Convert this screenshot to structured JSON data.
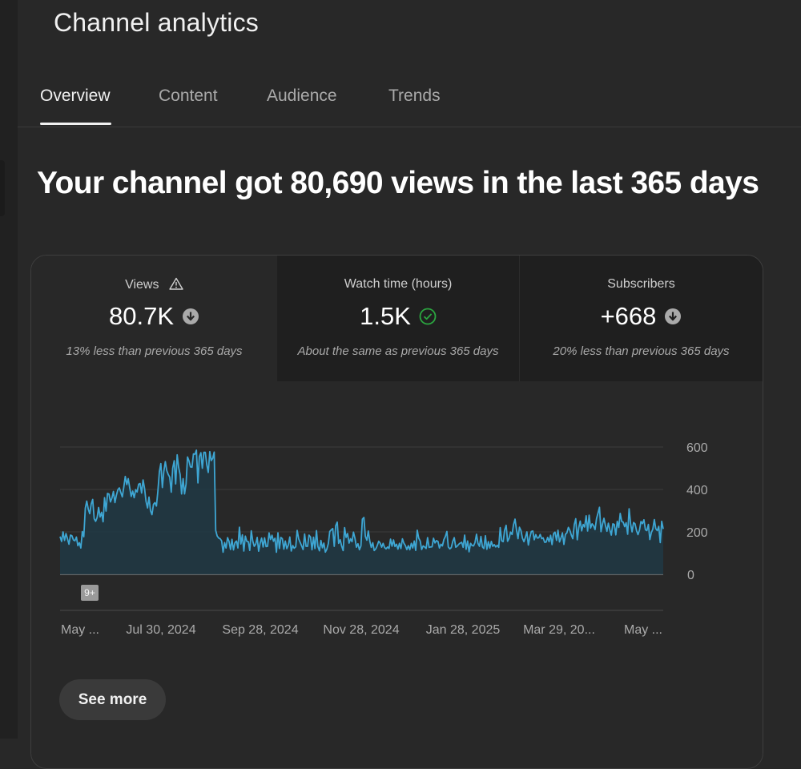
{
  "header": {
    "title": "Channel analytics"
  },
  "tabs": [
    {
      "label": "Overview",
      "active": true
    },
    {
      "label": "Content",
      "active": false
    },
    {
      "label": "Audience",
      "active": false
    },
    {
      "label": "Trends",
      "active": false
    }
  ],
  "headline": "Your channel got 80,690 views in the last 365 days",
  "metrics": [
    {
      "label": "Views",
      "value": "80.7K",
      "note": "13% less than previous 365 days",
      "status_icon": "arrow-down-icon",
      "label_icon": "warning-icon"
    },
    {
      "label": "Watch time (hours)",
      "value": "1.5K",
      "note": "About the same as previous 365 days",
      "status_icon": "check-circle-icon"
    },
    {
      "label": "Subscribers",
      "value": "+668",
      "note": "20% less than previous 365 days",
      "status_icon": "arrow-down-icon"
    }
  ],
  "colors": {
    "line": "#3ea6d3",
    "fill": "#203844",
    "check": "#2ba640",
    "neutral_icon": "#aaaaaa"
  },
  "badge": "9+",
  "see_more_label": "See more",
  "chart_data": {
    "type": "area",
    "series": [
      {
        "values": [
          178,
          155,
          200,
          160,
          192,
          167,
          142,
          185,
          182,
          162,
          158,
          176,
          135,
          149,
          124,
          202,
          177,
          312,
          345,
          307,
          286,
          332,
          353,
          262,
          250,
          268,
          315,
          270,
          292,
          248,
          361,
          298,
          381,
          378,
          341,
          360,
          390,
          338,
          373,
          399,
          407,
          385,
          365,
          412,
          461,
          423,
          451,
          407,
          367,
          392,
          361,
          399,
          388,
          425,
          428,
          383,
          445,
          404,
          344,
          313,
          364,
          300,
          281,
          330,
          338,
          322,
          392,
          484,
          522,
          409,
          485,
          531,
          489,
          470,
          458,
          387,
          500,
          535,
          426,
          563,
          505,
          470,
          379,
          451,
          379,
          426,
          553,
          534,
          506,
          505,
          567,
          566,
          585,
          431,
          555,
          573,
          500,
          575,
          575,
          516,
          480,
          578,
          536,
          547,
          576,
          207,
          181,
          171,
          168,
          158,
          104,
          150,
          124,
          173,
          156,
          117,
          165,
          115,
          149,
          157,
          124,
          222,
          143,
          186,
          110,
          180,
          156,
          154,
          113,
          205,
          158,
          132,
          142,
          174,
          109,
          148,
          171,
          129,
          172,
          131,
          132,
          195,
          164,
          184,
          156,
          170,
          104,
          196,
          122,
          174,
          168,
          119,
          157,
          121,
          137,
          176,
          110,
          136,
          123,
          130,
          207,
          167,
          151,
          134,
          117,
          190,
          132,
          132,
          185,
          176,
          116,
          175,
          122,
          206,
          131,
          111,
          160,
          125,
          147,
          105,
          118,
          145,
          202,
          210,
          216,
          132,
          229,
          246,
          146,
          163,
          134,
          112,
          220,
          174,
          192,
          147,
          168,
          154,
          199,
          169,
          128,
          144,
          116,
          134,
          260,
          268,
          179,
          161,
          204,
          156,
          127,
          149,
          112,
          120,
          135,
          156,
          147,
          128,
          146,
          126,
          120,
          129,
          122,
          166,
          133,
          162,
          131,
          142,
          119,
          146,
          122,
          167,
          147,
          135,
          117,
          135,
          116,
          146,
          124,
          157,
          113,
          208,
          171,
          157,
          117,
          134,
          129,
          122,
          173,
          127,
          129,
          130,
          170,
          148,
          159,
          155,
          124,
          142,
          134,
          164,
          178,
          202,
          129,
          120,
          126,
          156,
          173,
          128,
          133,
          142,
          147,
          151,
          127,
          185,
          118,
          157,
          106,
          146,
          136,
          134,
          150,
          189,
          146,
          132,
          179,
          129,
          122,
          182,
          118,
          154,
          124,
          155,
          132,
          140,
          129,
          137,
          127,
          220,
          158,
          154,
          208,
          231,
          156,
          170,
          199,
          188,
          234,
          260,
          210,
          168,
          222,
          206,
          171,
          154,
          174,
          200,
          138,
          175,
          202,
          204,
          163,
          187,
          171,
          172,
          188,
          168,
          172,
          151,
          152,
          174,
          154,
          184,
          140,
          192,
          199,
          160,
          208,
          153,
          171,
          195,
          141,
          189,
          195,
          221,
          208,
          185,
          168,
          235,
          262,
          163,
          219,
          251,
          205,
          235,
          223,
          276,
          204,
          279,
          218,
          238,
          229,
          211,
          262,
          289,
          316,
          201,
          236,
          264,
          231,
          203,
          241,
          209,
          185,
          238,
          235,
          186,
          250,
          221,
          287,
          249,
          246,
          225,
          243,
          189,
          309,
          237,
          200,
          244,
          238,
          206,
          187,
          209,
          249,
          239,
          257,
          210,
          206,
          235,
          164,
          197,
          213,
          258,
          215,
          206,
          226,
          150,
          250,
          214
        ]
      }
    ],
    "x_tick_labels": [
      "May ...",
      "Jul 30, 2024",
      "Sep 28, 2024",
      "Nov 28, 2024",
      "Jan 28, 2025",
      "Mar 29, 20...",
      "May ..."
    ],
    "y_ticks": [
      0,
      200,
      400,
      600
    ],
    "ylim": [
      0,
      600
    ],
    "y_axis_side": "right",
    "grid": true
  }
}
